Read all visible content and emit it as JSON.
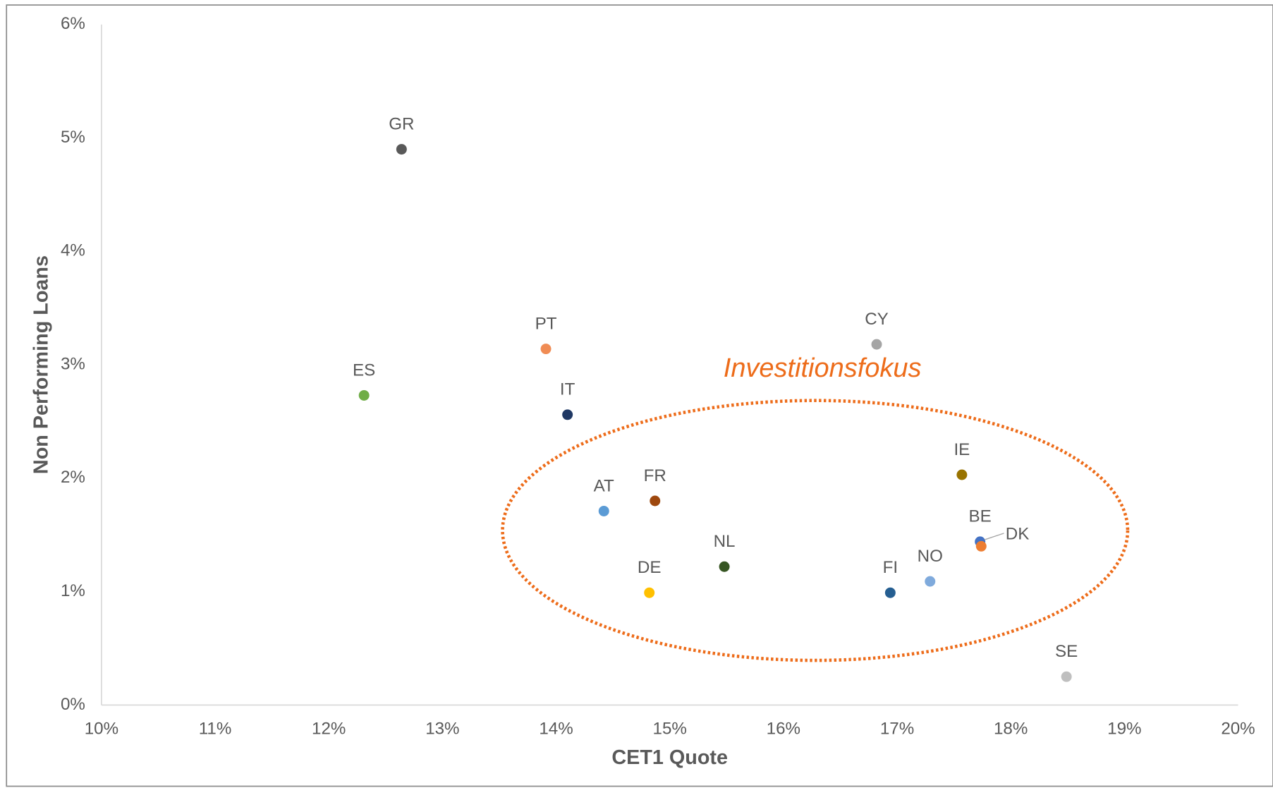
{
  "chart_data": {
    "type": "scatter",
    "xlabel": "CET1 Quote",
    "ylabel": "Non Performing Loans",
    "annotation": "Investitionsfokus",
    "grid": false,
    "xlim": [
      10,
      20
    ],
    "xticks": [
      {
        "value": 10,
        "label": "10%"
      },
      {
        "value": 11,
        "label": "11%"
      },
      {
        "value": 12,
        "label": "12%"
      },
      {
        "value": 13,
        "label": "13%"
      },
      {
        "value": 14,
        "label": "14%"
      },
      {
        "value": 15,
        "label": "15%"
      },
      {
        "value": 16,
        "label": "16%"
      },
      {
        "value": 17,
        "label": "17%"
      },
      {
        "value": 18,
        "label": "18%"
      },
      {
        "value": 19,
        "label": "19%"
      },
      {
        "value": 20,
        "label": "20%"
      }
    ],
    "ylim": [
      0,
      6
    ],
    "yticks": [
      {
        "value": 0,
        "label": "0%"
      },
      {
        "value": 1,
        "label": "1%"
      },
      {
        "value": 2,
        "label": "2%"
      },
      {
        "value": 3,
        "label": "3%"
      },
      {
        "value": 4,
        "label": "4%"
      },
      {
        "value": 5,
        "label": "5%"
      },
      {
        "value": 6,
        "label": "6%"
      }
    ],
    "series": [
      {
        "name": "GR",
        "color": "#595959",
        "x": [
          12.64
        ],
        "values": [
          4.9
        ]
      },
      {
        "name": "ES",
        "color": "#70ad47",
        "x": [
          12.31
        ],
        "values": [
          2.73
        ]
      },
      {
        "name": "PT",
        "color": "#f08c54",
        "x": [
          13.91
        ],
        "values": [
          3.14
        ]
      },
      {
        "name": "IT",
        "color": "#1f3864",
        "x": [
          14.1
        ],
        "values": [
          2.56
        ]
      },
      {
        "name": "AT",
        "color": "#5b9bd5",
        "x": [
          14.42
        ],
        "values": [
          1.71
        ]
      },
      {
        "name": "FR",
        "color": "#9e480e",
        "x": [
          14.87
        ],
        "values": [
          1.8
        ]
      },
      {
        "name": "DE",
        "color": "#ffc000",
        "x": [
          14.82
        ],
        "values": [
          0.99
        ]
      },
      {
        "name": "NL",
        "color": "#375623",
        "x": [
          15.48
        ],
        "values": [
          1.22
        ]
      },
      {
        "name": "CY",
        "color": "#a5a5a5",
        "x": [
          16.82
        ],
        "values": [
          3.18
        ]
      },
      {
        "name": "IE",
        "color": "#997300",
        "x": [
          17.57
        ],
        "values": [
          2.03
        ]
      },
      {
        "name": "BE",
        "color": "#4472c4",
        "x": [
          17.73
        ],
        "values": [
          1.44
        ]
      },
      {
        "name": "DK",
        "color": "#ed7d31",
        "x": [
          17.74
        ],
        "values": [
          1.4
        ]
      },
      {
        "name": "NO",
        "color": "#7faadc",
        "x": [
          17.29
        ],
        "values": [
          1.09
        ]
      },
      {
        "name": "FI",
        "color": "#255e91",
        "x": [
          16.94
        ],
        "values": [
          0.99
        ]
      },
      {
        "name": "SE",
        "color": "#bfbfbf",
        "x": [
          18.49
        ],
        "values": [
          0.25
        ]
      }
    ]
  }
}
